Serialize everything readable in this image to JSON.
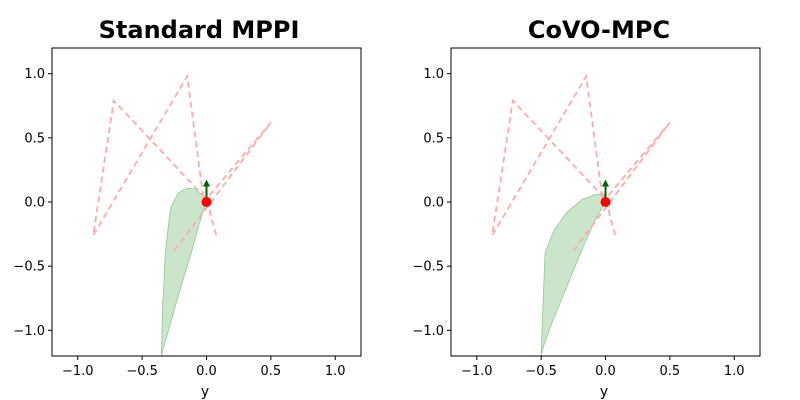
{
  "chart_data": [
    {
      "type": "line",
      "title": "Standard MPPI",
      "xlabel": "y",
      "ylabel": "",
      "xlim": [
        -1.2,
        1.2
      ],
      "ylim": [
        -1.2,
        1.2
      ],
      "xticks": [
        -1.0,
        -0.5,
        0.0,
        0.5,
        1.0
      ],
      "yticks": [
        -1.0,
        -0.5,
        0.0,
        0.5,
        1.0
      ],
      "xtick_labels": [
        "−1.0",
        "−0.5",
        "0.0",
        "0.5",
        "1.0"
      ],
      "ytick_labels": [
        "−1.0",
        "−0.5",
        "0.0",
        "0.5",
        "1.0"
      ],
      "grid": false,
      "series": [
        {
          "role": "reference-path",
          "style": "dashed",
          "color": "#ffaaaa",
          "x": [
            -0.25,
            0.5,
            -0.02,
            -0.15,
            -0.88,
            -0.72,
            0.02,
            0.03,
            0.08
          ],
          "y": [
            -0.38,
            0.62,
            0.0,
            0.98,
            -0.26,
            0.79,
            0.0,
            -0.1,
            -0.27
          ]
        },
        {
          "role": "uncertainty-region",
          "style": "fill",
          "color": "#b9dcb9",
          "upper": {
            "x": [
              -0.35,
              -0.34,
              -0.32,
              -0.28,
              -0.22,
              -0.15,
              -0.08,
              -0.03,
              0.0
            ],
            "y": [
              -1.2,
              -0.8,
              -0.4,
              -0.05,
              0.07,
              0.11,
              0.1,
              0.05,
              0.0
            ]
          },
          "lower": {
            "x": [
              0.0,
              -0.03,
              -0.07,
              -0.12,
              -0.18,
              -0.24,
              -0.29,
              -0.33,
              -0.35
            ],
            "y": [
              0.0,
              -0.08,
              -0.22,
              -0.4,
              -0.6,
              -0.8,
              -0.98,
              -1.12,
              -1.2
            ]
          }
        }
      ],
      "robot": {
        "x": 0.0,
        "y": 0.0,
        "color": "#ff0000"
      },
      "heading": {
        "dx": 0.0,
        "dy": 0.16,
        "color": "#006400"
      }
    },
    {
      "type": "line",
      "title": "CoVO-MPC",
      "xlabel": "y",
      "ylabel": "",
      "xlim": [
        -1.2,
        1.2
      ],
      "ylim": [
        -1.2,
        1.2
      ],
      "xticks": [
        -1.0,
        -0.5,
        0.0,
        0.5,
        1.0
      ],
      "yticks": [
        -1.0,
        -0.5,
        0.0,
        0.5,
        1.0
      ],
      "xtick_labels": [
        "−1.0",
        "−0.5",
        "0.0",
        "0.5",
        "1.0"
      ],
      "ytick_labels": [
        "−1.0",
        "−0.5",
        "0.0",
        "0.5",
        "1.0"
      ],
      "grid": false,
      "series": [
        {
          "role": "reference-path",
          "style": "dashed",
          "color": "#ffaaaa",
          "x": [
            -0.25,
            0.5,
            -0.02,
            -0.15,
            -0.88,
            -0.72,
            0.02,
            0.03,
            0.08
          ],
          "y": [
            -0.38,
            0.62,
            0.0,
            0.98,
            -0.26,
            0.79,
            0.0,
            -0.1,
            -0.27
          ]
        },
        {
          "role": "uncertainty-region",
          "style": "fill",
          "color": "#b9dcb9",
          "upper": {
            "x": [
              -0.5,
              -0.47,
              -0.4,
              -0.3,
              -0.18,
              -0.07,
              -0.01,
              0.0
            ],
            "y": [
              -1.2,
              -0.4,
              -0.22,
              -0.08,
              0.02,
              0.06,
              0.06,
              0.0
            ]
          },
          "lower": {
            "x": [
              0.0,
              -0.08,
              -0.17,
              -0.26,
              -0.35,
              -0.43,
              -0.48,
              -0.5
            ],
            "y": [
              0.0,
              -0.14,
              -0.34,
              -0.56,
              -0.78,
              -0.98,
              -1.12,
              -1.2
            ]
          }
        }
      ],
      "robot": {
        "x": 0.0,
        "y": 0.0,
        "color": "#ff0000"
      },
      "heading": {
        "dx": 0.0,
        "dy": 0.16,
        "color": "#006400"
      }
    }
  ]
}
